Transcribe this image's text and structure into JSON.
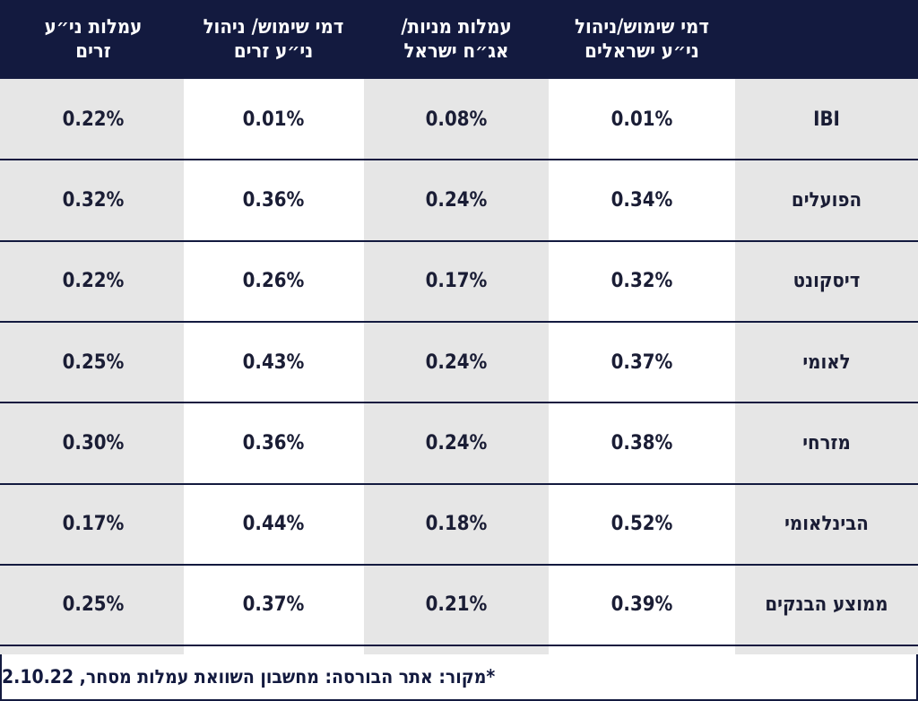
{
  "chart_data": {
    "type": "table",
    "columns": [
      "דמי שימוש/ניהול\nני״ע ישראלים",
      "עמלות מניות/\nאג״ח ישראל",
      "דמי שימוש/ ניהול\nני״ע זרים",
      "עמלות ני״ע\nזרים"
    ],
    "rows": [
      {
        "label": "IBI",
        "values": [
          "0.01%",
          "0.08%",
          "0.01%",
          "0.22%"
        ]
      },
      {
        "label": "הפועלים",
        "values": [
          "0.34%",
          "0.24%",
          "0.36%",
          "0.32%"
        ]
      },
      {
        "label": "דיסקונט",
        "values": [
          "0.32%",
          "0.17%",
          "0.26%",
          "0.22%"
        ]
      },
      {
        "label": "לאומי",
        "values": [
          "0.37%",
          "0.24%",
          "0.43%",
          "0.25%"
        ]
      },
      {
        "label": "מזרחי",
        "values": [
          "0.38%",
          "0.24%",
          "0.36%",
          "0.30%"
        ]
      },
      {
        "label": "הבינלאומי",
        "values": [
          "0.52%",
          "0.18%",
          "0.44%",
          "0.17%"
        ]
      },
      {
        "label": "ממוצע הבנקים",
        "values": [
          "0.39%",
          "0.21%",
          "0.37%",
          "0.25%"
        ]
      }
    ]
  },
  "source_note": "*מקור: אתר הבורסה: מחשבון השוואת עמלות מסחר, 2.10.22",
  "colors": {
    "header": "#131a3f",
    "gray": "#e6e6e6",
    "white": "#ffffff",
    "text": "#1a1d35"
  }
}
